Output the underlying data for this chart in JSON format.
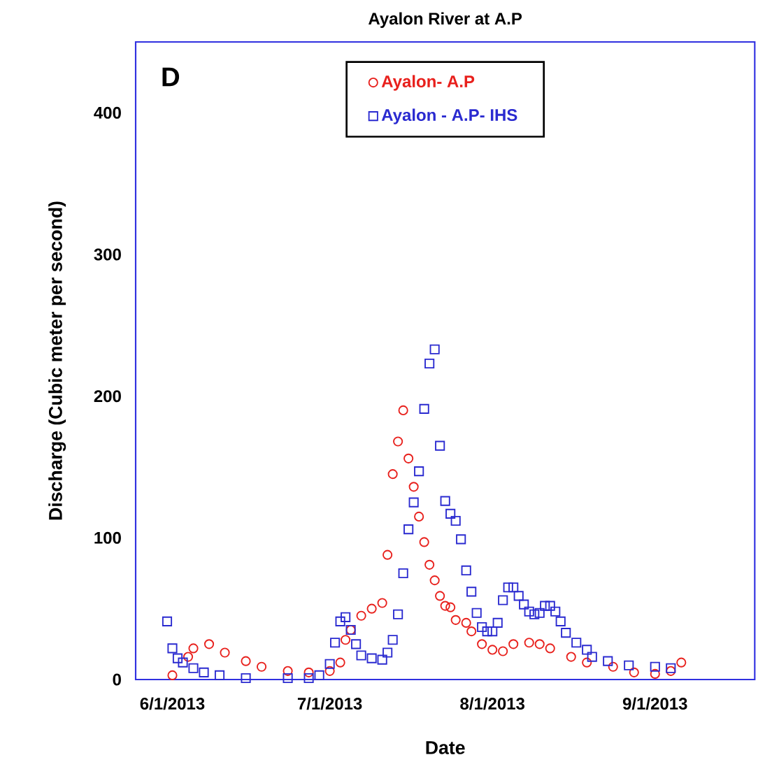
{
  "chart_data": {
    "type": "scatter",
    "title": "Ayalon River at A.P",
    "xlabel": "Date",
    "ylabel": "Discharge (Cubic meter per second)",
    "annotations": [
      "D"
    ],
    "xlim": [
      "2013-05-25",
      "2013-09-20"
    ],
    "ylim": [
      0,
      450
    ],
    "xticks": [
      {
        "value": "2013-06-01",
        "label": "6/1/2013"
      },
      {
        "value": "2013-07-01",
        "label": "7/1/2013"
      },
      {
        "value": "2013-08-01",
        "label": "8/1/2013"
      },
      {
        "value": "2013-09-01",
        "label": "9/1/2013"
      }
    ],
    "yticks": [
      0,
      100,
      200,
      300,
      400
    ],
    "grid": false,
    "legend": "top",
    "series": [
      {
        "name": "Ayalon- A.P",
        "color": "#e8201c",
        "marker": "circle",
        "x": [
          "2013-06-01",
          "2013-06-04",
          "2013-06-05",
          "2013-06-08",
          "2013-06-11",
          "2013-06-15",
          "2013-06-18",
          "2013-06-23",
          "2013-06-27",
          "2013-07-01",
          "2013-07-03",
          "2013-07-04",
          "2013-07-05",
          "2013-07-07",
          "2013-07-09",
          "2013-07-11",
          "2013-07-12",
          "2013-07-13",
          "2013-07-14",
          "2013-07-15",
          "2013-07-16",
          "2013-07-17",
          "2013-07-18",
          "2013-07-19",
          "2013-07-20",
          "2013-07-21",
          "2013-07-22",
          "2013-07-23",
          "2013-07-24",
          "2013-07-25",
          "2013-07-27",
          "2013-07-28",
          "2013-07-30",
          "2013-08-01",
          "2013-08-03",
          "2013-08-05",
          "2013-08-08",
          "2013-08-10",
          "2013-08-12",
          "2013-08-16",
          "2013-08-19",
          "2013-08-24",
          "2013-08-28",
          "2013-09-01",
          "2013-09-04",
          "2013-09-06"
        ],
        "values": [
          3,
          16,
          22,
          25,
          19,
          13,
          9,
          6,
          5,
          6,
          12,
          28,
          35,
          45,
          50,
          54,
          88,
          145,
          168,
          190,
          156,
          136,
          115,
          97,
          81,
          70,
          59,
          52,
          51,
          42,
          40,
          34,
          25,
          21,
          20,
          25,
          26,
          25,
          22,
          16,
          12,
          9,
          5,
          4,
          6,
          12
        ]
      },
      {
        "name": "Ayalon - A.P- IHS",
        "color": "#2a2ad0",
        "marker": "square",
        "x": [
          "2013-05-31",
          "2013-06-01",
          "2013-06-02",
          "2013-06-03",
          "2013-06-05",
          "2013-06-07",
          "2013-06-10",
          "2013-06-15",
          "2013-06-23",
          "2013-06-27",
          "2013-06-29",
          "2013-07-01",
          "2013-07-02",
          "2013-07-03",
          "2013-07-04",
          "2013-07-05",
          "2013-07-06",
          "2013-07-07",
          "2013-07-09",
          "2013-07-11",
          "2013-07-12",
          "2013-07-13",
          "2013-07-14",
          "2013-07-15",
          "2013-07-16",
          "2013-07-17",
          "2013-07-18",
          "2013-07-19",
          "2013-07-20",
          "2013-07-21",
          "2013-07-22",
          "2013-07-23",
          "2013-07-24",
          "2013-07-25",
          "2013-07-26",
          "2013-07-27",
          "2013-07-28",
          "2013-07-29",
          "2013-07-30",
          "2013-07-31",
          "2013-08-01",
          "2013-08-02",
          "2013-08-03",
          "2013-08-04",
          "2013-08-05",
          "2013-08-06",
          "2013-08-07",
          "2013-08-08",
          "2013-08-09",
          "2013-08-10",
          "2013-08-11",
          "2013-08-12",
          "2013-08-13",
          "2013-08-14",
          "2013-08-15",
          "2013-08-17",
          "2013-08-19",
          "2013-08-20",
          "2013-08-23",
          "2013-08-27",
          "2013-09-01",
          "2013-09-04"
        ],
        "values": [
          41,
          22,
          15,
          12,
          8,
          5,
          3,
          1,
          1,
          1,
          3,
          11,
          26,
          41,
          44,
          35,
          25,
          17,
          15,
          14,
          19,
          28,
          46,
          75,
          106,
          125,
          147,
          191,
          223,
          233,
          165,
          126,
          117,
          112,
          99,
          77,
          62,
          47,
          37,
          34,
          34,
          40,
          56,
          65,
          65,
          59,
          53,
          48,
          46,
          47,
          52,
          52,
          48,
          41,
          33,
          26,
          21,
          16,
          13,
          10,
          9,
          8
        ]
      }
    ]
  }
}
